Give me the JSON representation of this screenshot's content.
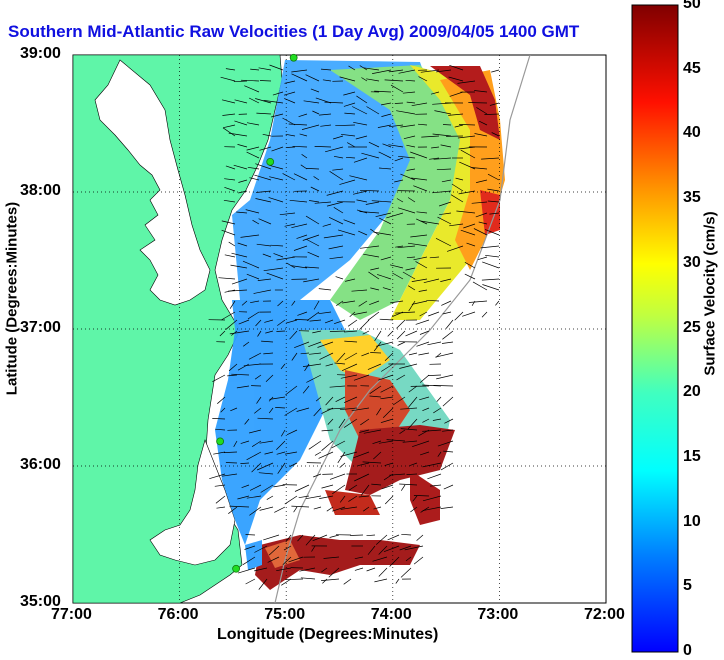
{
  "title": "Southern Mid-Atlantic Raw Velocities (1 Day Avg) 2009/04/05 1400 GMT",
  "colors": {
    "land": "#5ff5a8",
    "title": "#1010e0"
  },
  "chart_data": {
    "type": "heatmap",
    "xlabel": "Longitude (Degrees:Minutes)",
    "ylabel": "Latitude (Degrees:Minutes)",
    "xlim": [
      -77,
      -72
    ],
    "ylim": [
      35,
      39
    ],
    "x_ticks": [
      "77:00",
      "76:00",
      "75:00",
      "74:00",
      "73:00",
      "72:00"
    ],
    "y_ticks": [
      "39:00",
      "38:00",
      "37:00",
      "36:00",
      "35:00"
    ],
    "grid": true,
    "colorbar": {
      "label": "Surface Velocity (cm/s)",
      "range": [
        0,
        50
      ],
      "ticks": [
        "50",
        "45",
        "40",
        "35",
        "30",
        "25",
        "20",
        "15",
        "10",
        "5",
        "0"
      ]
    },
    "vector_field": "surface current arrows over ocean region",
    "stations": [
      {
        "lon": -74.93,
        "lat": 38.98
      },
      {
        "lon": -75.15,
        "lat": 38.22
      },
      {
        "lon": -75.62,
        "lat": 36.18
      },
      {
        "lon": -75.47,
        "lat": 35.25
      }
    ]
  }
}
